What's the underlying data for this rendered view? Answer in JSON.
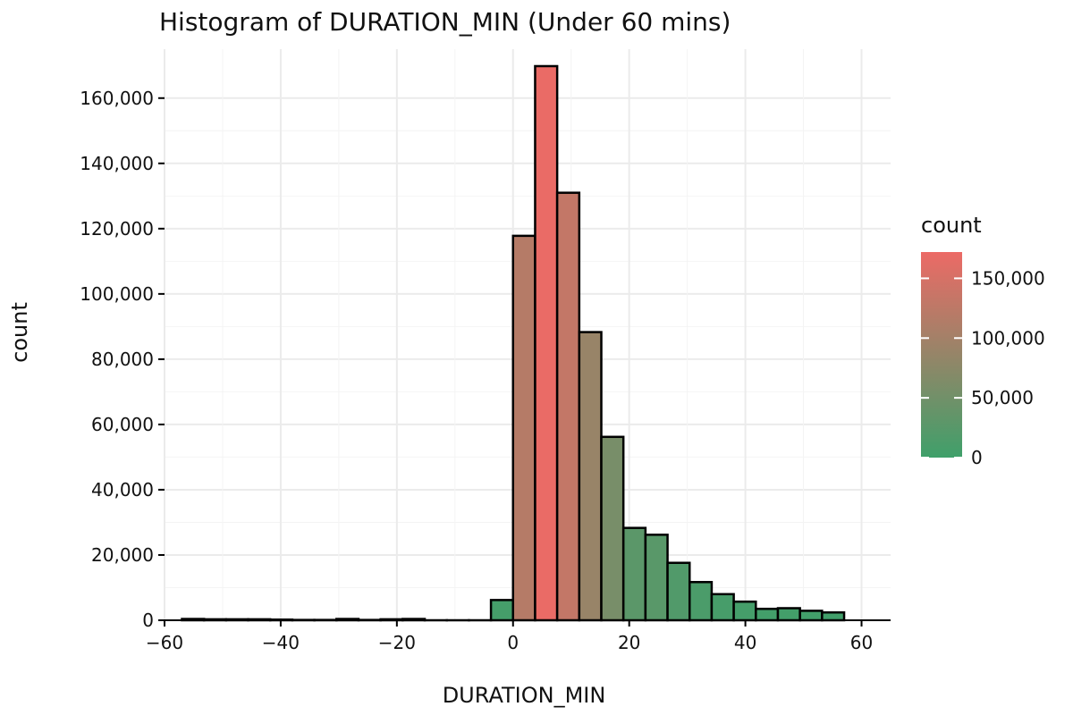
{
  "chart_data": {
    "type": "bar",
    "title": "Histogram of DURATION_MIN (Under 60 mins)",
    "xlabel": "DURATION_MIN",
    "ylabel": "count",
    "xlim": [
      -60,
      65
    ],
    "ylim": [
      0,
      175000
    ],
    "x_ticks": [
      -60,
      -40,
      -20,
      0,
      20,
      40,
      60
    ],
    "x_tick_labels": [
      "−60",
      "−40",
      "−20",
      "0",
      "20",
      "40",
      "60"
    ],
    "y_ticks": [
      0,
      20000,
      40000,
      60000,
      80000,
      100000,
      120000,
      140000,
      160000
    ],
    "y_tick_labels": [
      "0",
      "20,000",
      "40,000",
      "60,000",
      "80,000",
      "100,000",
      "120,000",
      "140,000",
      "160,000"
    ],
    "grid": true,
    "bin_width": 3.8,
    "bins": [
      {
        "x": -55.1,
        "count": 400
      },
      {
        "x": -51.3,
        "count": 300
      },
      {
        "x": -47.5,
        "count": 300
      },
      {
        "x": -43.7,
        "count": 300
      },
      {
        "x": -39.9,
        "count": 200
      },
      {
        "x": -36.1,
        "count": 100
      },
      {
        "x": -32.3,
        "count": 100
      },
      {
        "x": -28.5,
        "count": 400
      },
      {
        "x": -24.7,
        "count": 100
      },
      {
        "x": -20.9,
        "count": 300
      },
      {
        "x": -17.1,
        "count": 400
      },
      {
        "x": -13.3,
        "count": 0
      },
      {
        "x": -9.5,
        "count": 0
      },
      {
        "x": -5.7,
        "count": 0
      },
      {
        "x": -1.9,
        "count": 6200
      },
      {
        "x": 1.9,
        "count": 117800
      },
      {
        "x": 5.7,
        "count": 169800
      },
      {
        "x": 9.5,
        "count": 131000
      },
      {
        "x": 13.3,
        "count": 88300
      },
      {
        "x": 17.1,
        "count": 56200
      },
      {
        "x": 20.9,
        "count": 28300
      },
      {
        "x": 24.7,
        "count": 26200
      },
      {
        "x": 28.5,
        "count": 17600
      },
      {
        "x": 32.3,
        "count": 11700
      },
      {
        "x": 36.1,
        "count": 8000
      },
      {
        "x": 39.9,
        "count": 5700
      },
      {
        "x": 43.7,
        "count": 3500
      },
      {
        "x": 47.5,
        "count": 3700
      },
      {
        "x": 51.3,
        "count": 2900
      },
      {
        "x": 55.1,
        "count": 2400
      }
    ],
    "fill_scale": {
      "low_color": "#3fa06a",
      "high_color": "#ec6a66",
      "min": 0,
      "max": 172000
    },
    "bar_stroke": "#000000",
    "legend": {
      "title": "count",
      "position": "right",
      "ticks": [
        0,
        50000,
        100000,
        150000
      ],
      "tick_labels": [
        "0",
        "50,000",
        "100,000",
        "150,000"
      ]
    }
  }
}
